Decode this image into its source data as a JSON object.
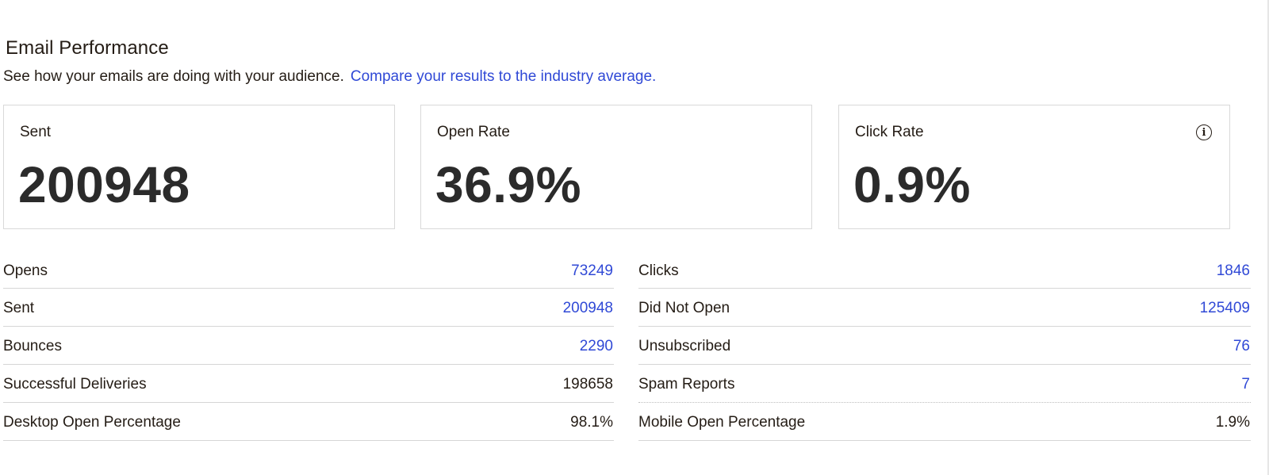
{
  "header": {
    "title": "Email Performance",
    "subtitle": "See how your emails are doing with your audience.",
    "compare_link": "Compare your results to the industry average."
  },
  "cards": [
    {
      "label": "Sent",
      "value": "200948"
    },
    {
      "label": "Open Rate",
      "value": "36.9%"
    },
    {
      "label": "Click Rate",
      "value": "0.9%",
      "icon": "info-icon"
    }
  ],
  "stats_left": [
    {
      "label": "Opens",
      "value": "73249",
      "link": true
    },
    {
      "label": "Sent",
      "value": "200948",
      "link": true
    },
    {
      "label": "Bounces",
      "value": "2290",
      "link": true
    },
    {
      "label": "Successful Deliveries",
      "value": "198658",
      "link": false
    },
    {
      "label": "Desktop Open Percentage",
      "value": "98.1%",
      "link": false
    }
  ],
  "stats_right": [
    {
      "label": "Clicks",
      "value": "1846",
      "link": true
    },
    {
      "label": "Did Not Open",
      "value": "125409",
      "link": true
    },
    {
      "label": "Unsubscribed",
      "value": "76",
      "link": true
    },
    {
      "label": "Spam Reports",
      "value": "7",
      "link": true
    },
    {
      "label": "Mobile Open Percentage",
      "value": "1.9%",
      "link": false
    }
  ],
  "colors": {
    "link": "#3049d6",
    "text": "#241c15",
    "border": "#d9d9d9"
  }
}
